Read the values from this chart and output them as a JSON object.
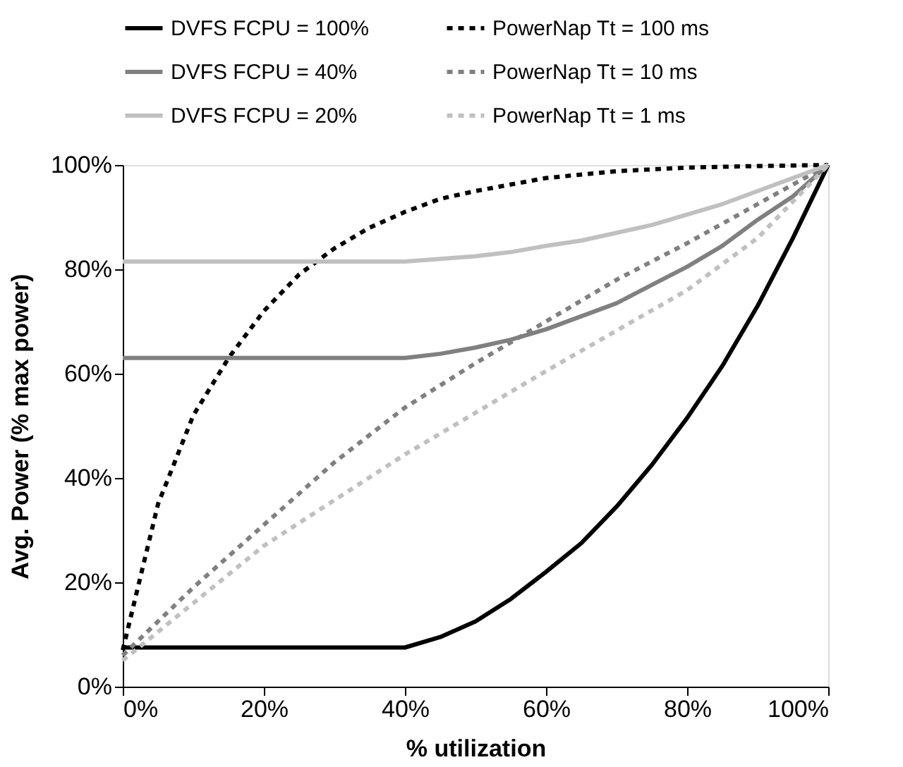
{
  "chart_data": {
    "type": "line",
    "xlabel": "% utilization",
    "ylabel": "Avg. Power (% max power)",
    "legend": "top",
    "grid": false,
    "marker": "none",
    "xlim": [
      0,
      100
    ],
    "ylim": [
      0,
      100
    ],
    "xticks": [
      {
        "value": 0,
        "label": "0%"
      },
      {
        "value": 20,
        "label": "20%"
      },
      {
        "value": 40,
        "label": "40%"
      },
      {
        "value": 60,
        "label": "60%"
      },
      {
        "value": 80,
        "label": "80%"
      },
      {
        "value": 100,
        "label": "100%"
      }
    ],
    "yticks": [
      {
        "value": 0,
        "label": "0%"
      },
      {
        "value": 20,
        "label": "20%"
      },
      {
        "value": 40,
        "label": "40%"
      },
      {
        "value": 60,
        "label": "60%"
      },
      {
        "value": 80,
        "label": "80%"
      },
      {
        "value": 100,
        "label": "100%"
      }
    ],
    "series": [
      {
        "name": "DVFS   FCPU = 100%",
        "color": "#000000",
        "line_style": "solid",
        "x": [
          0,
          40,
          45,
          50,
          55,
          60,
          65,
          70,
          75,
          80,
          85,
          90,
          95,
          100
        ],
        "values": [
          7.5,
          7.5,
          9.5,
          12.5,
          16.8,
          22,
          27.5,
          34.5,
          42.5,
          51.5,
          61.5,
          73,
          86,
          100
        ]
      },
      {
        "name": "PowerNap Tt = 100 ms",
        "color": "#000000",
        "line_style": "dashed",
        "x": [
          0,
          5,
          10,
          15,
          20,
          25,
          30,
          35,
          40,
          45,
          50,
          60,
          70,
          80,
          90,
          100
        ],
        "values": [
          7,
          35,
          52,
          63,
          72,
          79,
          84,
          88,
          91,
          93.5,
          95,
          97.5,
          98.8,
          99.5,
          99.8,
          100
        ]
      },
      {
        "name": "DVFS   FCPU = 40%",
        "color": "#808080",
        "line_style": "solid",
        "x": [
          0,
          40,
          45,
          50,
          55,
          60,
          65,
          70,
          75,
          80,
          85,
          90,
          95,
          100
        ],
        "values": [
          63,
          63,
          63.8,
          65,
          66.5,
          68.5,
          71,
          73.5,
          77,
          80.5,
          84.5,
          89.5,
          94,
          100
        ]
      },
      {
        "name": "PowerNap Tt = 10 ms",
        "color": "#808080",
        "line_style": "dashed",
        "x": [
          0,
          10,
          20,
          30,
          40,
          50,
          60,
          70,
          80,
          90,
          100
        ],
        "values": [
          6,
          19,
          31,
          43,
          53.5,
          62,
          70,
          78,
          85,
          92.5,
          100
        ]
      },
      {
        "name": "DVFS   FCPU = 20%",
        "color": "#c0c0c0",
        "line_style": "solid",
        "x": [
          0,
          40,
          45,
          50,
          55,
          60,
          65,
          70,
          75,
          80,
          85,
          90,
          95,
          100
        ],
        "values": [
          81.5,
          81.5,
          82,
          82.5,
          83.3,
          84.5,
          85.5,
          87,
          88.5,
          90.5,
          92.5,
          95,
          97.5,
          100
        ]
      },
      {
        "name": "PowerNap Tt = 1 ms",
        "color": "#c0c0c0",
        "line_style": "dashed",
        "x": [
          0,
          20,
          40,
          60,
          80,
          90,
          100
        ],
        "values": [
          5,
          27,
          44.5,
          60.5,
          76,
          86,
          100
        ]
      }
    ]
  }
}
